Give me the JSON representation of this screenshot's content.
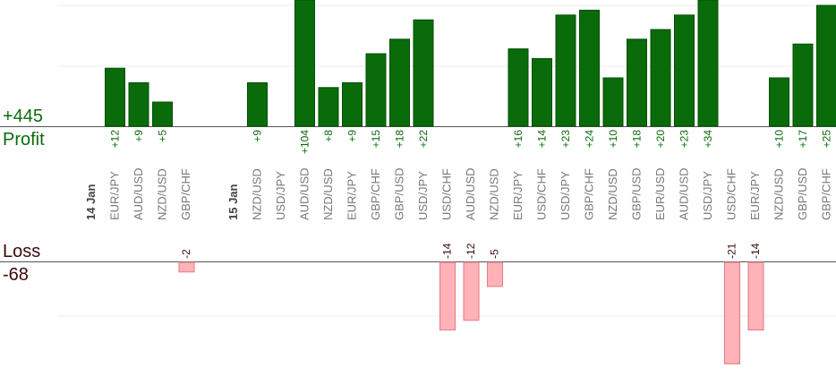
{
  "summary": {
    "profit_value": "+445",
    "profit_label": "Profit",
    "loss_label": "Loss",
    "loss_value": "-68"
  },
  "colors": {
    "profit_bar": "#0a6b0a",
    "profit_bar_edge": "#064d06",
    "profit_text": "#0b6b0b",
    "loss_bar": "#ffb3b8",
    "loss_bar_edge": "#e07a82",
    "loss_text": "#3b0a0a",
    "category_text": "#777777",
    "day_text": "#444444"
  },
  "chart_data": {
    "type": "bar",
    "profit_axis": {
      "min": 0,
      "gridline_step": 12.5
    },
    "loss_axis": {
      "min": -25,
      "max": 0,
      "gridline_step": 12.5
    },
    "columns": [
      {
        "kind": "day",
        "label": "14 Jan"
      },
      {
        "kind": "trade",
        "label": "EUR/JPY",
        "value": 12,
        "value_label": "+12"
      },
      {
        "kind": "trade",
        "label": "AUD/USD",
        "value": 9,
        "value_label": "+9"
      },
      {
        "kind": "trade",
        "label": "NZD/USD",
        "value": 5,
        "value_label": "+5"
      },
      {
        "kind": "trade",
        "label": "GBP/CHF",
        "value": -2,
        "value_label": "-2"
      },
      {
        "kind": "gap"
      },
      {
        "kind": "day",
        "label": "15 Jan"
      },
      {
        "kind": "trade",
        "label": "NZD/USD",
        "value": 9,
        "value_label": "+9"
      },
      {
        "kind": "trade",
        "label": "USD/JPY",
        "value": 0,
        "value_label": ""
      },
      {
        "kind": "trade",
        "label": "AUD/USD",
        "value": 104,
        "value_label": "+104"
      },
      {
        "kind": "trade",
        "label": "NZD/USD",
        "value": 8,
        "value_label": "+8"
      },
      {
        "kind": "trade",
        "label": "EUR/JPY",
        "value": 9,
        "value_label": "+9"
      },
      {
        "kind": "trade",
        "label": "GBP/CHF",
        "value": 15,
        "value_label": "+15"
      },
      {
        "kind": "trade",
        "label": "GBP/USD",
        "value": 18,
        "value_label": "+18"
      },
      {
        "kind": "trade",
        "label": "USD/JPY",
        "value": 22,
        "value_label": "+22"
      },
      {
        "kind": "trade",
        "label": "USD/CHF",
        "value": -14,
        "value_label": "-14"
      },
      {
        "kind": "trade",
        "label": "AUD/USD",
        "value": -12,
        "value_label": "-12"
      },
      {
        "kind": "trade",
        "label": "NZD/USD",
        "value": -5,
        "value_label": "-5"
      },
      {
        "kind": "trade",
        "label": "EUR/JPY",
        "value": 16,
        "value_label": "+16"
      },
      {
        "kind": "trade",
        "label": "USD/CHF",
        "value": 14,
        "value_label": "+14"
      },
      {
        "kind": "trade",
        "label": "USD/JPY",
        "value": 23,
        "value_label": "+23"
      },
      {
        "kind": "trade",
        "label": "GBP/CHF",
        "value": 24,
        "value_label": "+24"
      },
      {
        "kind": "trade",
        "label": "NZD/USD",
        "value": 10,
        "value_label": "+10"
      },
      {
        "kind": "trade",
        "label": "GBP/USD",
        "value": 18,
        "value_label": "+18"
      },
      {
        "kind": "trade",
        "label": "EUR/USD",
        "value": 20,
        "value_label": "+20"
      },
      {
        "kind": "trade",
        "label": "AUD/USD",
        "value": 23,
        "value_label": "+23"
      },
      {
        "kind": "trade",
        "label": "USD/JPY",
        "value": 34,
        "value_label": "+34"
      },
      {
        "kind": "trade",
        "label": "USD/CHF",
        "value": -21,
        "value_label": "-21"
      },
      {
        "kind": "trade",
        "label": "EUR/JPY",
        "value": -14,
        "value_label": "-14"
      },
      {
        "kind": "trade",
        "label": "NZD/USD",
        "value": 10,
        "value_label": "+10"
      },
      {
        "kind": "trade",
        "label": "GBP/USD",
        "value": 17,
        "value_label": "+17"
      },
      {
        "kind": "trade",
        "label": "GBP/CHF",
        "value": 25,
        "value_label": "+25"
      }
    ]
  }
}
